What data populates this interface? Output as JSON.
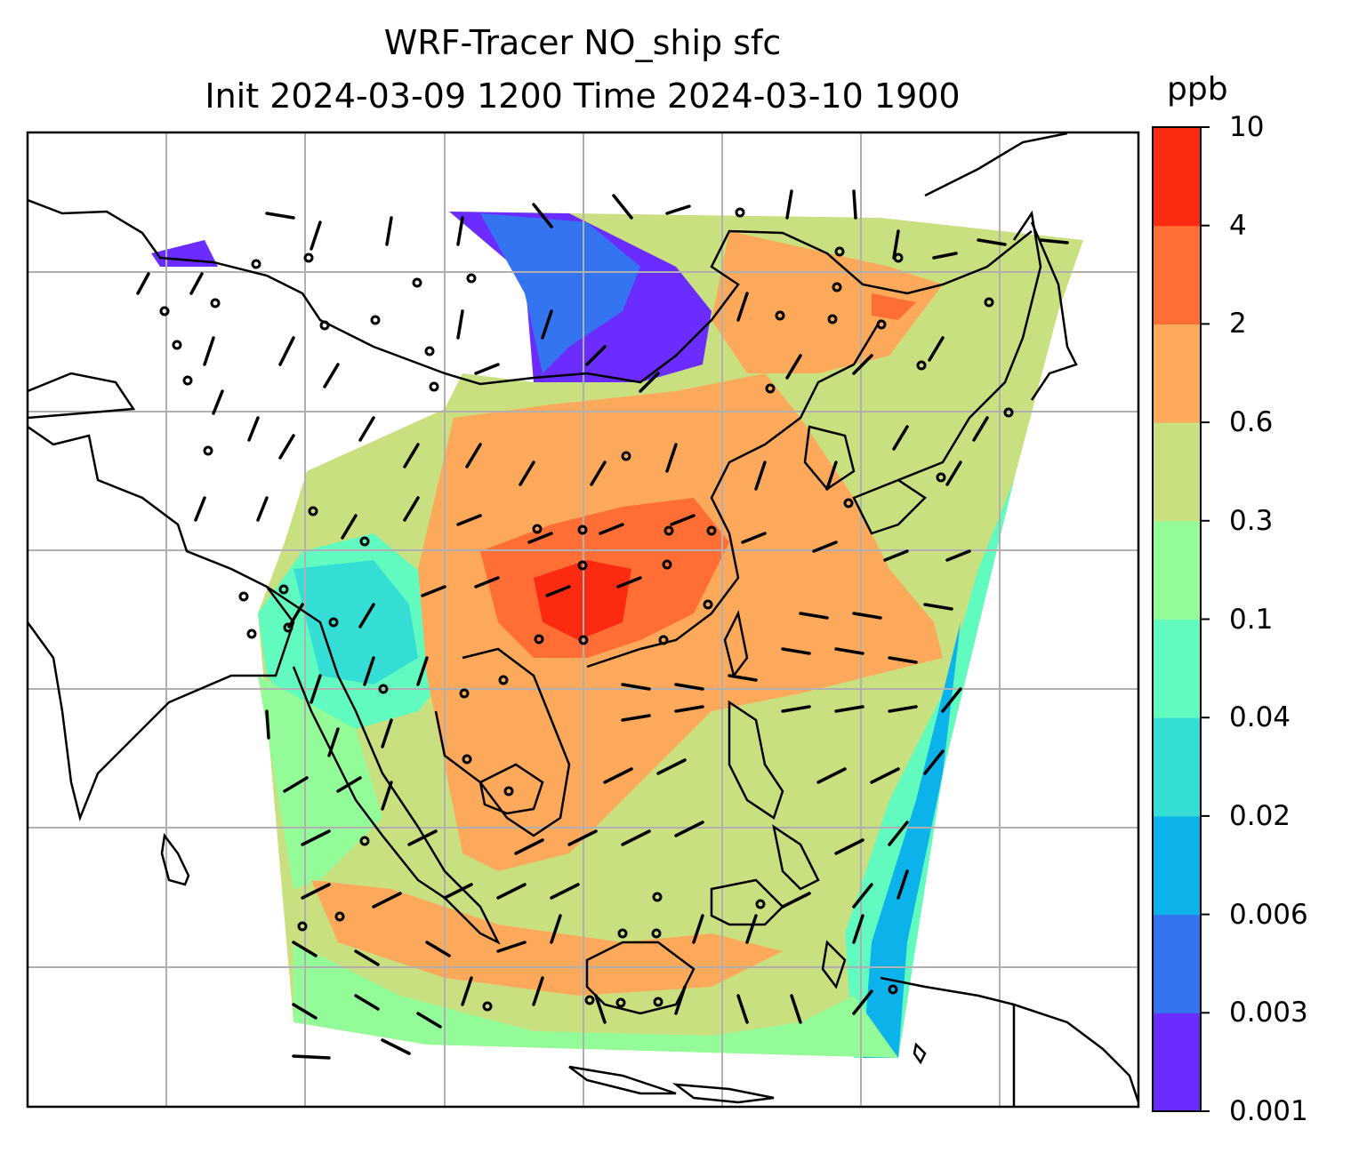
{
  "title_line1": "WRF-Tracer NO_ship sfc",
  "title_line2": "Init 2024-03-09 1200 Time 2024-03-10 1900",
  "colorbar": {
    "unit": "ppb",
    "levels": [
      "0.001",
      "0.003",
      "0.006",
      "0.02",
      "0.04",
      "0.1",
      "0.3",
      "0.6",
      "2",
      "4",
      "10"
    ],
    "colors": [
      "#6a2cff",
      "#3574f0",
      "#0cb2ea",
      "#35ded4",
      "#62fbbf",
      "#93fb98",
      "#c9e080",
      "#fda95b",
      "#fe6e35",
      "#fd2a12"
    ]
  },
  "map": {
    "gridlines": true,
    "wind_barbs": true,
    "coastlines": true,
    "colors": {
      "background": "#ffffff",
      "grid": "#b0b0b0",
      "lines": "#000000"
    }
  }
}
